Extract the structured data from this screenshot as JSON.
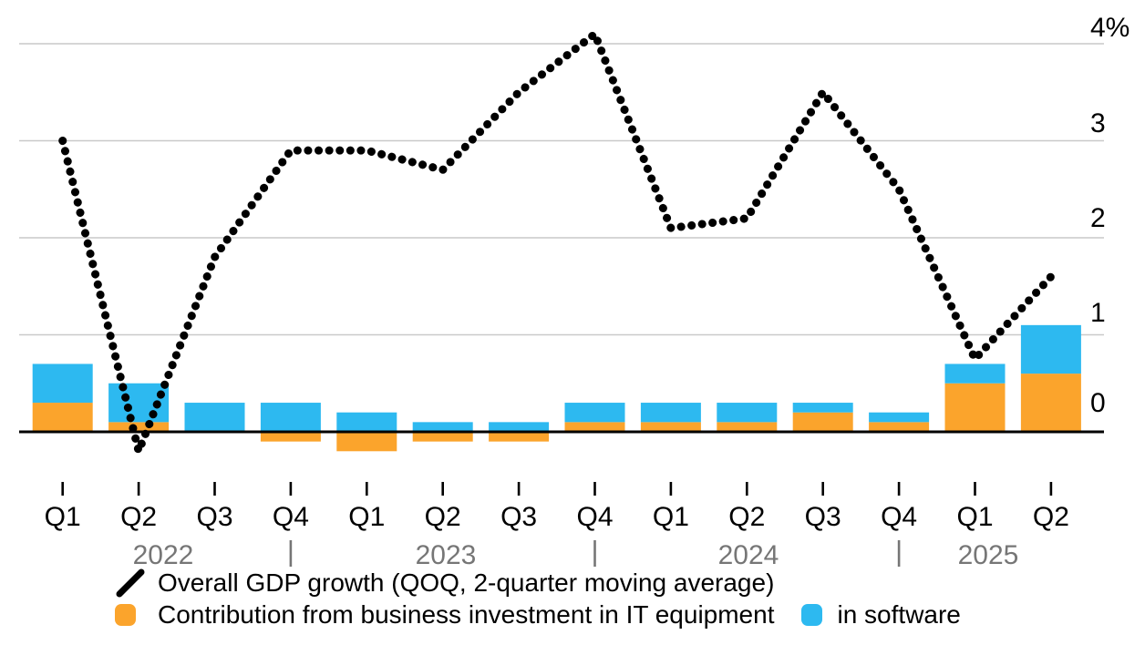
{
  "chart_data": {
    "type": "combo-bar-line",
    "title": "",
    "unit": "%",
    "grid": "horizontal",
    "axis_side": "right",
    "legend_position": "bottom-left",
    "ylim": [
      -0.5,
      4.45
    ],
    "categories": [
      "Q1",
      "Q2",
      "Q3",
      "Q4",
      "Q1",
      "Q2",
      "Q3",
      "Q4",
      "Q1",
      "Q2",
      "Q3",
      "Q4",
      "Q1",
      "Q2"
    ],
    "year_groups": [
      {
        "label": "2022",
        "quarters": 4
      },
      {
        "label": "2023",
        "quarters": 4
      },
      {
        "label": "2024",
        "quarters": 4
      },
      {
        "label": "2025",
        "quarters": 2
      }
    ],
    "year_separator": "|",
    "y_ticks": [
      {
        "label": "4%",
        "value": 4
      },
      {
        "label": "3",
        "value": 3
      },
      {
        "label": "2",
        "value": 2
      },
      {
        "label": "1",
        "value": 1
      },
      {
        "label": "0",
        "value": 0
      }
    ],
    "series": [
      {
        "name": "Contribution from business investment in IT equipment",
        "type": "bar",
        "stack": "contribution",
        "color": "#FBA42C",
        "values": [
          0.3,
          0.1,
          0.0,
          -0.1,
          -0.2,
          -0.1,
          -0.1,
          0.1,
          0.1,
          0.1,
          0.2,
          0.1,
          0.5,
          0.6
        ]
      },
      {
        "name": "in software",
        "type": "bar",
        "stack": "contribution",
        "color": "#2DB9F0",
        "values": [
          0.4,
          0.4,
          0.3,
          0.3,
          0.2,
          0.1,
          0.1,
          0.2,
          0.2,
          0.2,
          0.1,
          0.1,
          0.2,
          0.5
        ]
      },
      {
        "name": "Overall GDP growth (QOQ, 2-quarter moving average)",
        "type": "line",
        "line_style": "dotted",
        "color": "#000000",
        "values": [
          3.0,
          -0.2,
          1.8,
          2.9,
          2.9,
          2.7,
          3.5,
          4.1,
          2.1,
          2.2,
          3.5,
          2.5,
          0.75,
          1.6
        ]
      }
    ],
    "colors": {
      "grid": "#C9C9C9",
      "zero_axis": "#000000",
      "tick_text": "#000000",
      "year_text": "#767676",
      "background": "#FFFFFF"
    }
  },
  "legend": {
    "line_label": "Overall GDP growth (QOQ, 2-quarter moving average)",
    "equipment_label": "Contribution from business investment in IT equipment",
    "software_label": "in software"
  }
}
